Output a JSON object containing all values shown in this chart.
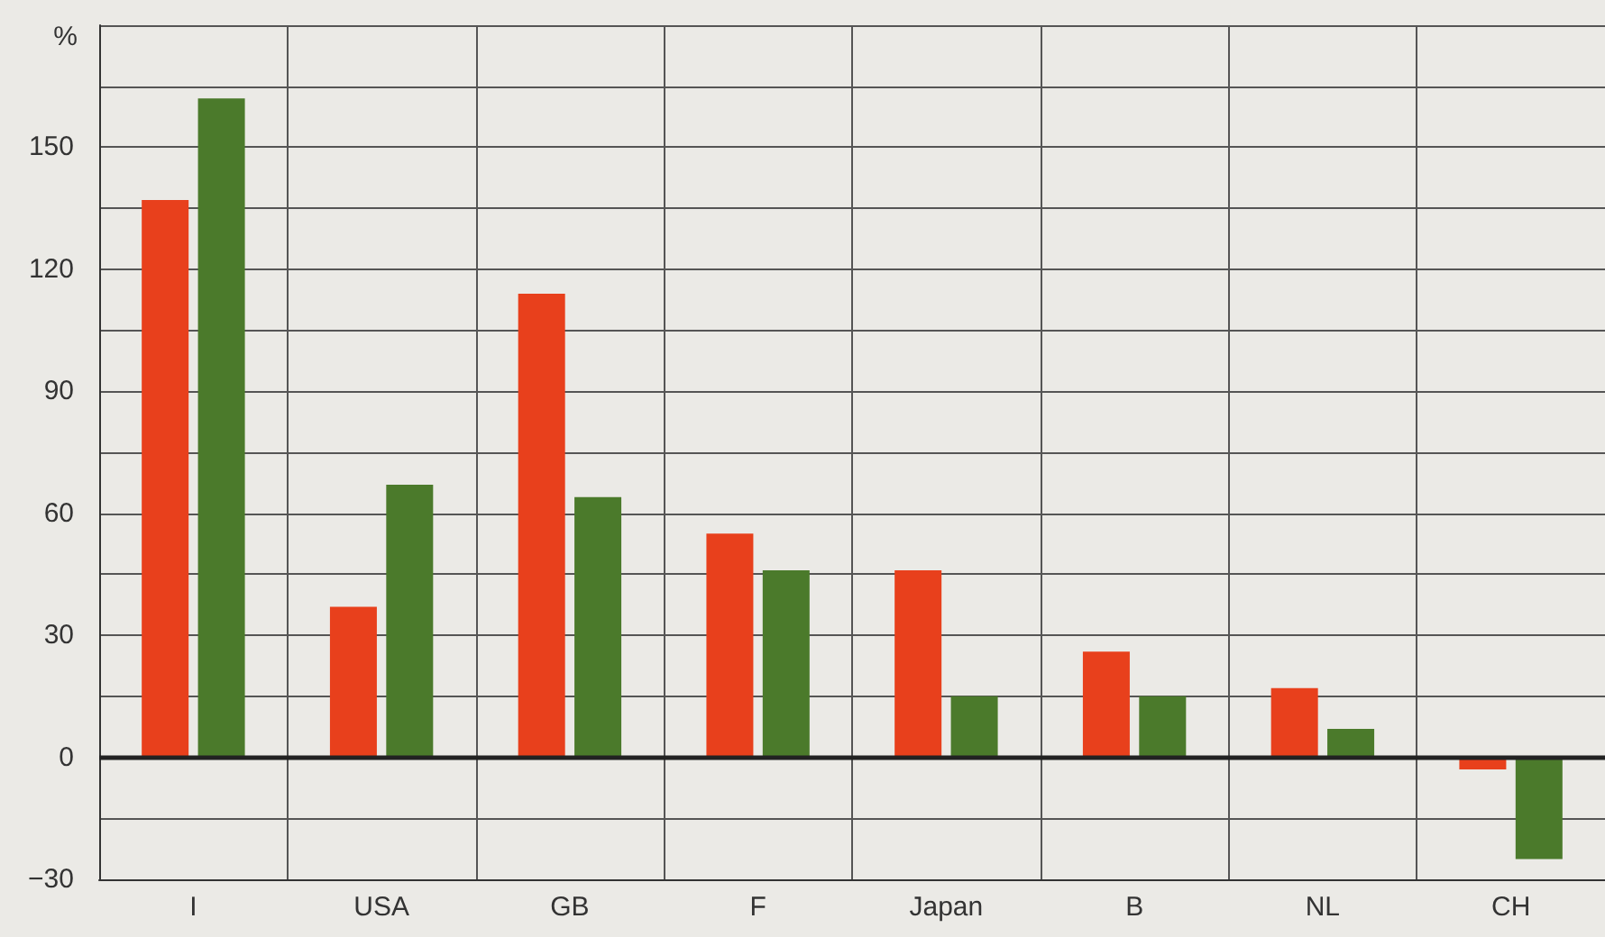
{
  "chart_data": {
    "type": "bar",
    "ylabel": "%",
    "categories": [
      "I",
      "USA",
      "GB",
      "F",
      "Japan",
      "B",
      "NL",
      "CH"
    ],
    "series": [
      {
        "color": "#e8401c",
        "values": [
          137,
          37,
          114,
          55,
          46,
          26,
          17,
          -3
        ]
      },
      {
        "color": "#4b7a2b",
        "values": [
          162,
          67,
          64,
          46,
          15,
          15,
          7,
          -25
        ]
      }
    ],
    "ylim": [
      -30,
      180
    ],
    "yticks": [
      {
        "value": -30,
        "label": "−30"
      },
      0,
      30,
      60,
      90,
      120,
      150,
      {
        "value": 180,
        "label": null
      }
    ],
    "ref_lines": [
      {
        "axis": "y",
        "value": 0,
        "color": "#222222"
      }
    ],
    "grid": true
  }
}
